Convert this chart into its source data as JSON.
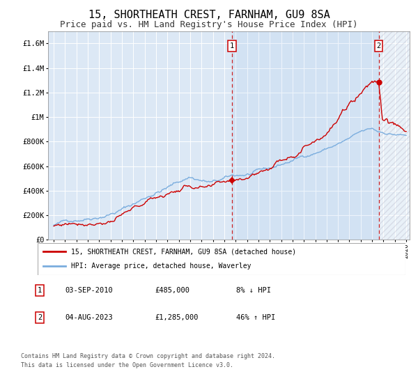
{
  "title": "15, SHORTHEATH CREST, FARNHAM, GU9 8SA",
  "subtitle": "Price paid vs. HM Land Registry's House Price Index (HPI)",
  "ylim": [
    0,
    1700000
  ],
  "yticks": [
    0,
    200000,
    400000,
    600000,
    800000,
    1000000,
    1200000,
    1400000,
    1600000
  ],
  "ytick_labels": [
    "£0",
    "£200K",
    "£400K",
    "£600K",
    "£800K",
    "£1M",
    "£1.2M",
    "£1.4M",
    "£1.6M"
  ],
  "hpi_color": "#7aadde",
  "price_color": "#cc0000",
  "bg_color": "#dce8f5",
  "grid_color": "#ffffff",
  "sale1_year": 2010.67,
  "sale1_price": 485000,
  "sale2_year": 2023.58,
  "sale2_price": 1285000,
  "legend_entry1": "15, SHORTHEATH CREST, FARNHAM, GU9 8SA (detached house)",
  "legend_entry2": "HPI: Average price, detached house, Waverley",
  "table_row1_num": "1",
  "table_row1_date": "03-SEP-2010",
  "table_row1_price": "£485,000",
  "table_row1_hpi": "8% ↓ HPI",
  "table_row2_num": "2",
  "table_row2_date": "04-AUG-2023",
  "table_row2_price": "£1,285,000",
  "table_row2_hpi": "46% ↑ HPI",
  "footer": "Contains HM Land Registry data © Crown copyright and database right 2024.\nThis data is licensed under the Open Government Licence v3.0.",
  "title_fontsize": 11,
  "subtitle_fontsize": 9
}
